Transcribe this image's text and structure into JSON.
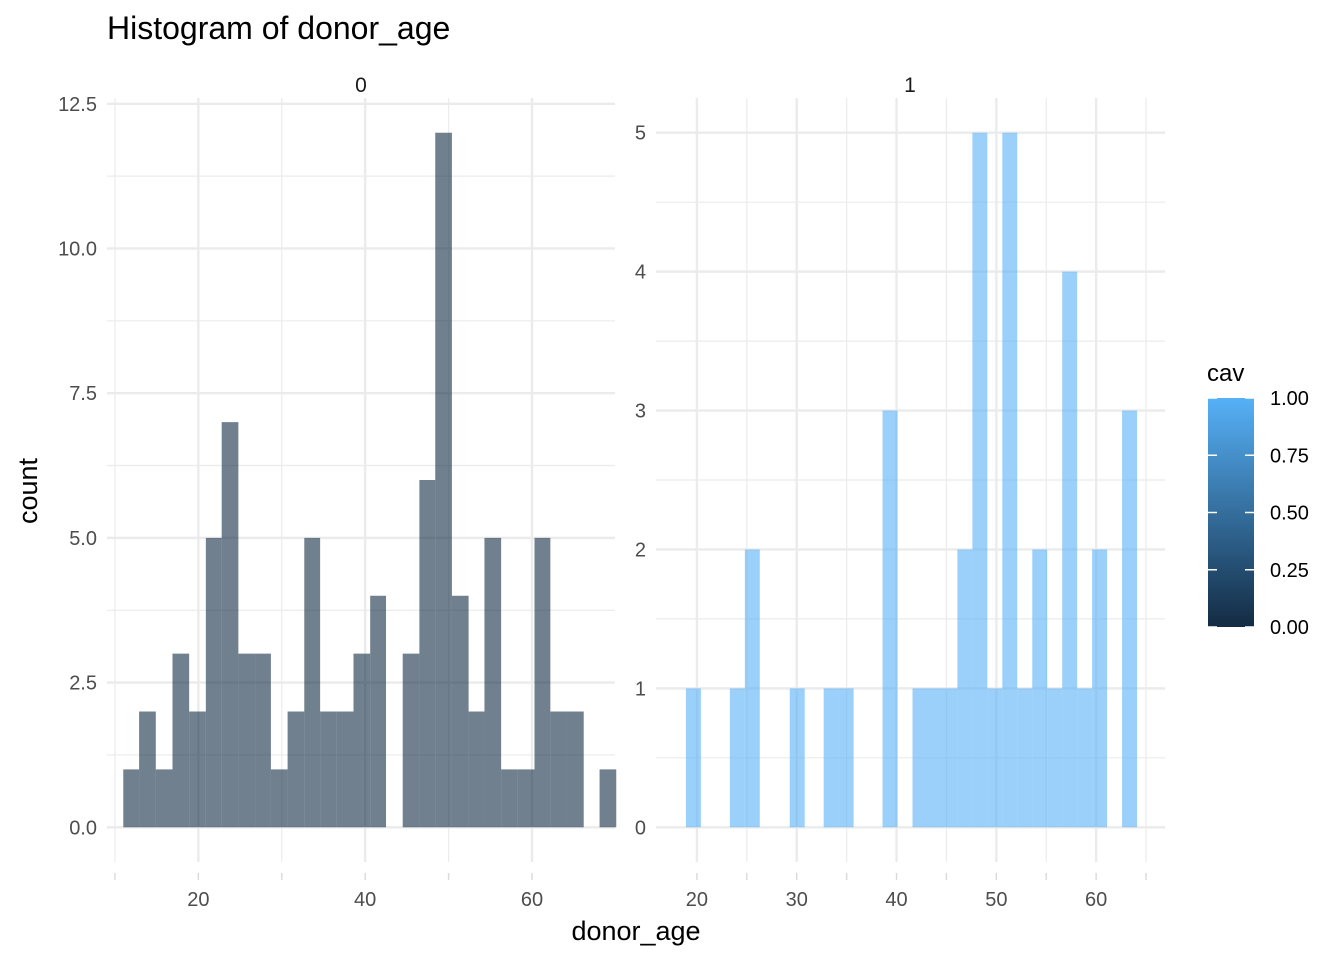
{
  "chart_data": {
    "type": "bar",
    "title": "Histogram of donor_age",
    "xlabel": "donor_age",
    "ylabel": "count",
    "grid": true,
    "legend_position": "right",
    "colors": {
      "cav_low": "#132B43",
      "cav_high": "#56B1F7",
      "grid": "#ebebeb",
      "text": "#4d4d4d"
    },
    "legend": {
      "title": "cav",
      "labels": [
        "1.00",
        "0.75",
        "0.50",
        "0.25",
        "0.00"
      ],
      "values": [
        1.0,
        0.75,
        0.5,
        0.25,
        0.0
      ]
    },
    "panels": [
      {
        "strip": "0",
        "xlim": [
          9.05,
          69.95
        ],
        "ylim": [
          -0.6,
          12.6
        ],
        "xticks": [
          20,
          40,
          60
        ],
        "xtick_labels": [
          "20",
          "40",
          "60"
        ],
        "yticks": [
          0,
          2.5,
          5,
          7.5,
          10,
          12.5
        ],
        "ytick_labels": [
          "0.0",
          "2.5",
          "5.0",
          "7.5",
          "10.0",
          "12.5"
        ],
        "fill": "#132B43",
        "bins": [
          {
            "x0": 11.0,
            "x1": 12.9,
            "count": 1
          },
          {
            "x0": 12.9,
            "x1": 14.9,
            "count": 2
          },
          {
            "x0": 14.9,
            "x1": 16.9,
            "count": 1
          },
          {
            "x0": 16.9,
            "x1": 18.9,
            "count": 3
          },
          {
            "x0": 18.9,
            "x1": 20.9,
            "count": 2
          },
          {
            "x0": 20.9,
            "x1": 22.8,
            "count": 5
          },
          {
            "x0": 22.8,
            "x1": 24.8,
            "count": 7
          },
          {
            "x0": 24.8,
            "x1": 26.8,
            "count": 3
          },
          {
            "x0": 26.8,
            "x1": 28.7,
            "count": 3
          },
          {
            "x0": 28.7,
            "x1": 30.7,
            "count": 1
          },
          {
            "x0": 30.7,
            "x1": 32.7,
            "count": 2
          },
          {
            "x0": 32.7,
            "x1": 34.6,
            "count": 5
          },
          {
            "x0": 34.6,
            "x1": 36.6,
            "count": 2
          },
          {
            "x0": 36.6,
            "x1": 38.6,
            "count": 2
          },
          {
            "x0": 38.6,
            "x1": 40.6,
            "count": 3
          },
          {
            "x0": 40.6,
            "x1": 42.5,
            "count": 4
          },
          {
            "x0": 44.5,
            "x1": 46.5,
            "count": 3
          },
          {
            "x0": 46.5,
            "x1": 48.4,
            "count": 6
          },
          {
            "x0": 48.4,
            "x1": 50.4,
            "count": 12
          },
          {
            "x0": 50.4,
            "x1": 52.4,
            "count": 4
          },
          {
            "x0": 52.4,
            "x1": 54.3,
            "count": 2
          },
          {
            "x0": 54.3,
            "x1": 56.3,
            "count": 5
          },
          {
            "x0": 56.3,
            "x1": 58.3,
            "count": 1
          },
          {
            "x0": 58.3,
            "x1": 60.3,
            "count": 1
          },
          {
            "x0": 60.3,
            "x1": 62.2,
            "count": 5
          },
          {
            "x0": 62.2,
            "x1": 64.2,
            "count": 2
          },
          {
            "x0": 64.2,
            "x1": 66.2,
            "count": 2
          },
          {
            "x0": 68.1,
            "x1": 70.1,
            "count": 1
          }
        ]
      },
      {
        "strip": "1",
        "xlim": [
          15.9,
          66.9
        ],
        "ylim": [
          -0.25,
          5.25
        ],
        "xticks": [
          20,
          30,
          40,
          50,
          60
        ],
        "xtick_labels": [
          "20",
          "30",
          "40",
          "50",
          "60"
        ],
        "yticks": [
          0,
          1,
          2,
          3,
          4,
          5
        ],
        "ytick_labels": [
          "0",
          "1",
          "2",
          "3",
          "4",
          "5"
        ],
        "fill": "#56B1F7",
        "bins": [
          {
            "x0": 18.9,
            "x1": 20.4,
            "count": 1
          },
          {
            "x0": 23.3,
            "x1": 24.8,
            "count": 1
          },
          {
            "x0": 24.8,
            "x1": 26.3,
            "count": 2
          },
          {
            "x0": 29.3,
            "x1": 30.8,
            "count": 1
          },
          {
            "x0": 32.7,
            "x1": 34.2,
            "count": 1
          },
          {
            "x0": 34.2,
            "x1": 35.7,
            "count": 1
          },
          {
            "x0": 38.6,
            "x1": 40.1,
            "count": 3
          },
          {
            "x0": 41.6,
            "x1": 43.1,
            "count": 1
          },
          {
            "x0": 43.1,
            "x1": 44.6,
            "count": 1
          },
          {
            "x0": 44.6,
            "x1": 46.1,
            "count": 1
          },
          {
            "x0": 46.1,
            "x1": 47.6,
            "count": 2
          },
          {
            "x0": 47.6,
            "x1": 49.1,
            "count": 5
          },
          {
            "x0": 49.1,
            "x1": 50.6,
            "count": 1
          },
          {
            "x0": 50.6,
            "x1": 52.1,
            "count": 5
          },
          {
            "x0": 52.1,
            "x1": 53.6,
            "count": 1
          },
          {
            "x0": 53.6,
            "x1": 55.1,
            "count": 2
          },
          {
            "x0": 55.1,
            "x1": 56.6,
            "count": 1
          },
          {
            "x0": 56.6,
            "x1": 58.1,
            "count": 4
          },
          {
            "x0": 58.1,
            "x1": 59.6,
            "count": 1
          },
          {
            "x0": 59.6,
            "x1": 61.1,
            "count": 2
          },
          {
            "x0": 62.6,
            "x1": 64.1,
            "count": 3
          }
        ]
      }
    ]
  }
}
